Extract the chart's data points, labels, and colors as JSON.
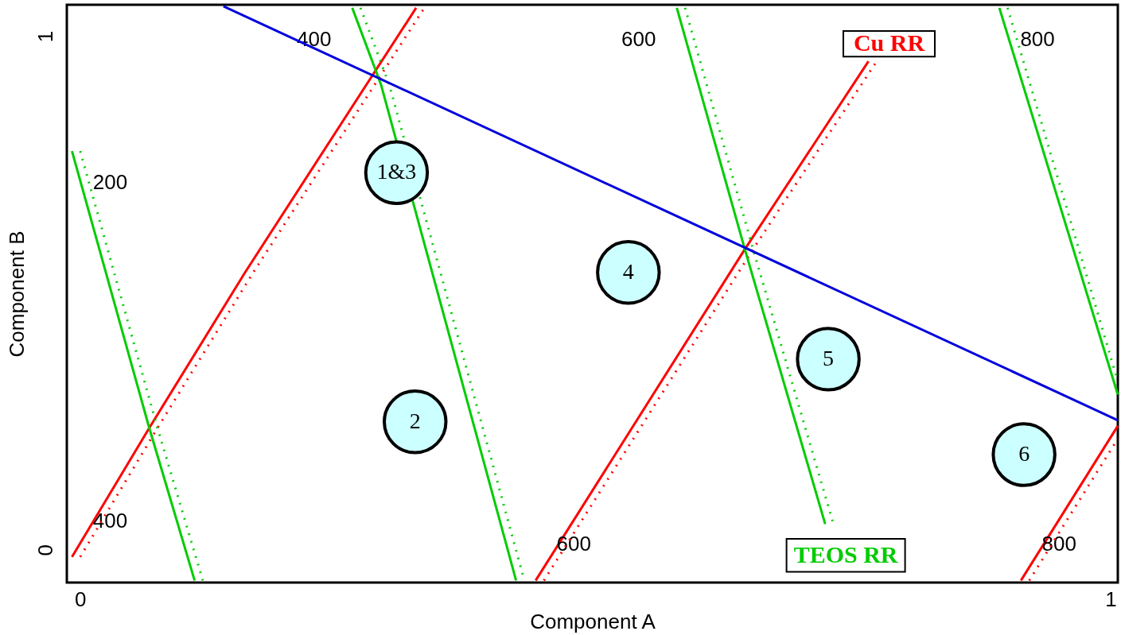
{
  "chart_data": {
    "type": "line",
    "xlabel": "Component A",
    "ylabel": "Component B",
    "xlim": [
      -0.013,
      1.007
    ],
    "ylim": [
      -0.064,
      1.061
    ],
    "xticks": [
      0,
      1
    ],
    "yticks": [
      0,
      1
    ],
    "grid": false,
    "series": [
      {
        "name": "400",
        "color": "#ff0000",
        "line_style": "solid",
        "x": [
          -0.008,
          0.067,
          0.16,
          0.326
        ],
        "values": [
          -0.014,
          0.237,
          0.54,
          1.055
        ]
      },
      {
        "name": "600",
        "color": "#ff0000",
        "line_style": "solid",
        "x": [
          0.442,
          0.645,
          0.765
        ],
        "values": [
          -0.06,
          0.585,
          0.951
        ]
      },
      {
        "name": "800",
        "color": "#ff0000",
        "line_style": "solid",
        "x": [
          0.913,
          1.007
        ],
        "values": [
          -0.06,
          0.241
        ]
      },
      {
        "color": "#ff0000",
        "line_style": "dotted",
        "x": [
          0.0,
          0.075,
          0.168,
          0.334,
          null,
          0.45,
          0.653,
          0.773,
          null,
          0.921,
          1.007
        ],
        "values": [
          -0.014,
          0.237,
          0.54,
          1.055,
          null,
          -0.06,
          0.585,
          0.951,
          null,
          -0.06,
          0.216
        ]
      },
      {
        "name": "200",
        "color": "#00cc00",
        "line_style": "solid",
        "x": [
          -0.008,
          0.067,
          0.111
        ],
        "values": [
          0.776,
          0.237,
          -0.06
        ]
      },
      {
        "name": "400",
        "color": "#00cc00",
        "line_style": "solid",
        "x": [
          0.264,
          0.292,
          0.423
        ],
        "values": [
          1.055,
          0.905,
          -0.06
        ]
      },
      {
        "name": "600",
        "color": "#00cc00",
        "line_style": "solid",
        "x": [
          0.579,
          0.645,
          0.723
        ],
        "values": [
          1.055,
          0.585,
          0.05
        ]
      },
      {
        "name": "800",
        "color": "#00cc00",
        "line_style": "solid",
        "x": [
          0.892,
          1.007
        ],
        "values": [
          1.055,
          0.302
        ]
      },
      {
        "color": "#00cc00",
        "line_style": "dotted",
        "x": [
          0.0,
          0.075,
          0.119,
          null,
          0.272,
          0.3,
          0.431,
          null,
          0.587,
          0.653,
          0.731,
          null,
          0.9,
          1.007
        ],
        "values": [
          0.776,
          0.237,
          -0.06,
          null,
          1.055,
          0.905,
          -0.06,
          null,
          1.055,
          0.585,
          0.05,
          null,
          1.055,
          0.328
        ]
      },
      {
        "color": "#0000dd",
        "line_style": "solid",
        "x": [
          0.139,
          1.007
        ],
        "values": [
          1.058,
          0.252
        ]
      },
      {
        "type": "scatter",
        "marker": "circle",
        "color": "#ccffff",
        "x": [
          0.307,
          0.325,
          0.532,
          0.726,
          0.916
        ],
        "values": [
          0.734,
          0.249,
          0.54,
          0.371,
          0.185
        ]
      }
    ],
    "annotations": [
      "Cu RR",
      "TEOS RR",
      {
        "text": "1&3",
        "x": 0.307,
        "y": 0.734
      },
      {
        "text": "2",
        "x": 0.325,
        "y": 0.249
      },
      {
        "text": "4",
        "x": 0.532,
        "y": 0.54
      },
      {
        "text": "5",
        "x": 0.726,
        "y": 0.371
      },
      {
        "text": "6",
        "x": 0.916,
        "y": 0.185
      }
    ]
  }
}
